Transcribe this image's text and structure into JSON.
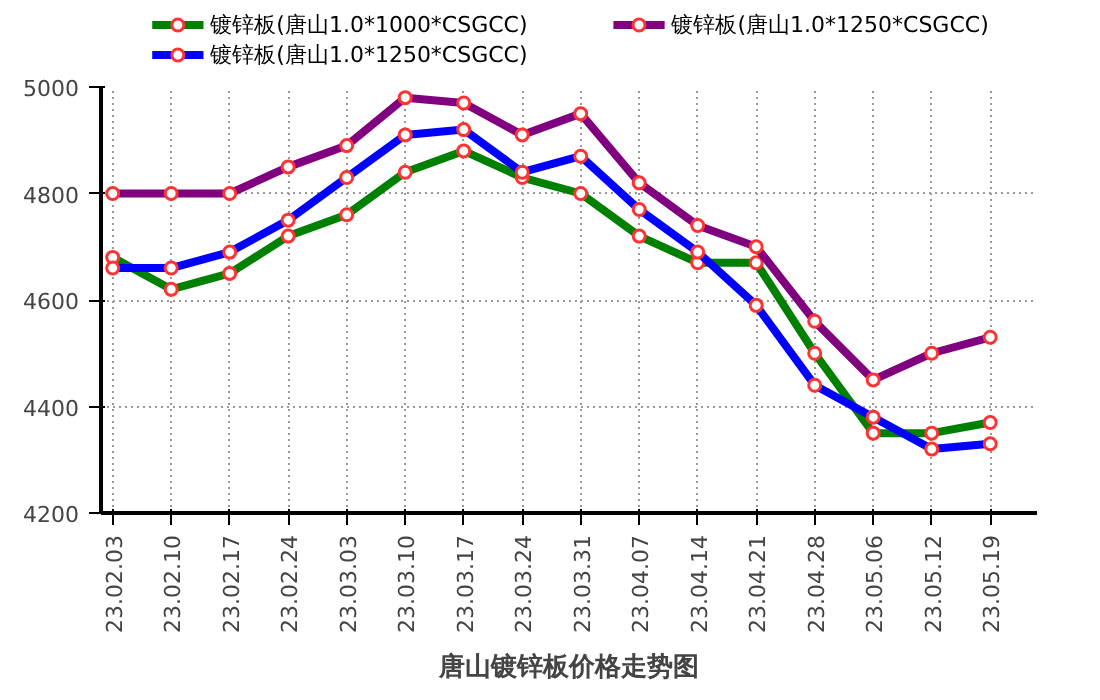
{
  "chart_data": {
    "type": "line",
    "title": "唐山镀锌板价格走势图",
    "categories": [
      "23.02.03",
      "23.02.10",
      "23.02.17",
      "23.02.24",
      "23.03.03",
      "23.03.10",
      "23.03.17",
      "23.03.24",
      "23.03.31",
      "23.04.07",
      "23.04.14",
      "23.04.21",
      "23.04.28",
      "23.05.06",
      "23.05.12",
      "23.05.19"
    ],
    "series": [
      {
        "name": "镀锌板(唐山1.0*1000*CSGCC)",
        "color": "#008000",
        "values": [
          4680,
          4620,
          4650,
          4720,
          4760,
          4840,
          4880,
          4830,
          4800,
          4720,
          4670,
          4670,
          4500,
          4350,
          4350,
          4370
        ]
      },
      {
        "name": "镀锌板(唐山1.0*1250*CSGCC)",
        "color": "#0000ff",
        "values": [
          4660,
          4660,
          4690,
          4750,
          4830,
          4910,
          4920,
          4840,
          4870,
          4770,
          4690,
          4590,
          4440,
          4380,
          4320,
          4330
        ]
      },
      {
        "name": "镀锌板(唐山1.0*1250*CSGCC)",
        "color": "#800080",
        "values": [
          4800,
          4800,
          4800,
          4850,
          4890,
          4980,
          4970,
          4910,
          4950,
          4820,
          4740,
          4700,
          4560,
          4450,
          4500,
          4530
        ]
      }
    ],
    "ylim": [
      4200,
      5000
    ],
    "yticks": [
      4200,
      4400,
      4600,
      4800,
      5000
    ],
    "grid": true,
    "legend": "top",
    "marker": "circle",
    "line_style": "solid"
  }
}
